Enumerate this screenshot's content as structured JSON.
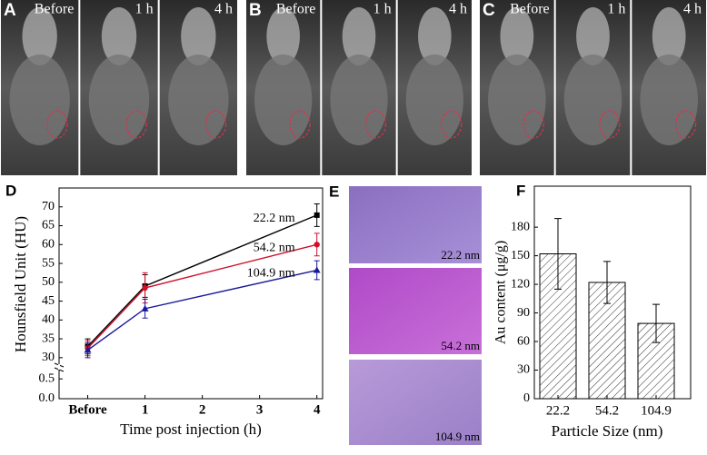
{
  "panels": {
    "A": {
      "label": "A",
      "times": [
        "Before",
        "1 h",
        "4 h"
      ]
    },
    "B": {
      "label": "B",
      "times": [
        "Before",
        "1 h",
        "4 h"
      ]
    },
    "C": {
      "label": "C",
      "times": [
        "Before",
        "1 h",
        "4 h"
      ]
    },
    "E": {
      "label": "E",
      "images": [
        "22.2 nm",
        "54.2 nm",
        "104.9 nm"
      ]
    }
  },
  "chart_data": [
    {
      "type": "line",
      "panel_label": "D",
      "ylabel": "Hounsfield Unit (HU)",
      "xlabel": "Time post injection (h)",
      "x": [
        0,
        1,
        4
      ],
      "xlim": [
        -0.5,
        4.1
      ],
      "xticks": [
        {
          "value": 0,
          "label": "Before"
        },
        1,
        2,
        3,
        4
      ],
      "ylim": [
        29,
        75
      ],
      "yticks": [
        30,
        35,
        40,
        45,
        50,
        55,
        60,
        65,
        70
      ],
      "break_ylim": [
        0,
        0.55
      ],
      "break_yticks": [
        {
          "value": 0,
          "label": "0.0"
        },
        {
          "value": 0.5,
          "label": "0.5"
        }
      ],
      "series": [
        {
          "name": "22.2 nm",
          "color": "#000000",
          "marker": "square",
          "values": [
            33,
            49,
            67.8
          ],
          "errors": [
            2,
            3,
            3
          ]
        },
        {
          "name": "54.2 nm",
          "color": "#d0102a",
          "marker": "circle",
          "values": [
            32.5,
            48.5,
            60
          ],
          "errors": [
            2,
            4,
            3
          ]
        },
        {
          "name": "104.9 nm",
          "color": "#1a1a9a",
          "marker": "triangle",
          "values": [
            32,
            43,
            53.2
          ],
          "errors": [
            2,
            2.5,
            2.5
          ]
        }
      ]
    },
    {
      "type": "bar",
      "panel_label": "F",
      "ylabel": "Au content (μg/g)",
      "xlabel": "Particle Size (nm)",
      "categories": [
        "22.2",
        "54.2",
        "104.9"
      ],
      "values": [
        152,
        122,
        79
      ],
      "errors": [
        37,
        22,
        20
      ],
      "ylim": [
        0,
        223
      ],
      "yticks": [
        0,
        30,
        60,
        90,
        120,
        150,
        180
      ]
    }
  ]
}
